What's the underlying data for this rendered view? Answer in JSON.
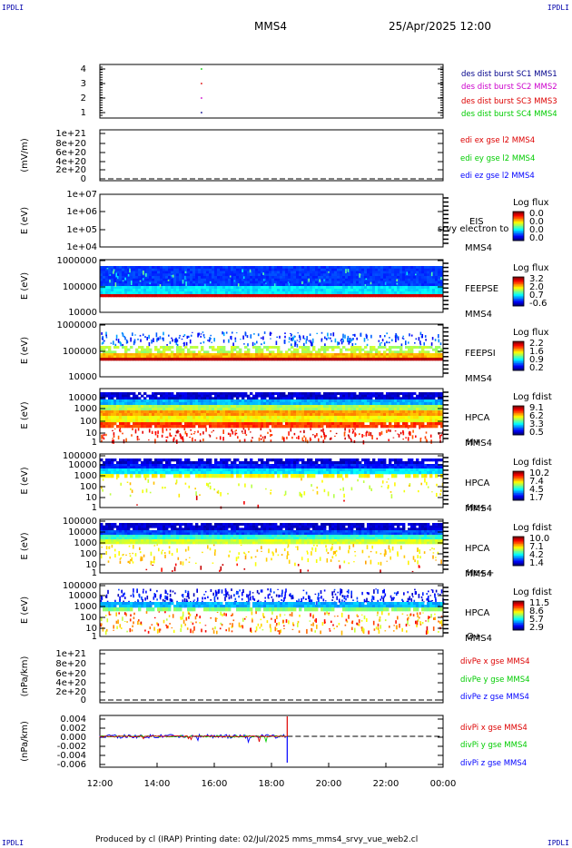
{
  "corners": {
    "tl": "IPDLI",
    "tr": "IPDLI",
    "bl": "IPDLI",
    "br": "IPDLI"
  },
  "header": {
    "spacecraft": "MMS4",
    "datetime": "25/Apr/2025 12:00"
  },
  "footer": {
    "text": "Produced by cl (IRAP)   Printing date: 02/Jul/2025   mms_mms4_srvy_vue_web2.cl"
  },
  "colors": {
    "dark_blue": "#00008b",
    "magenta": "#cc00cc",
    "red": "#dd0000",
    "green": "#00cc00",
    "blue": "#0000ff"
  },
  "chart_data": {
    "type": "heatmap",
    "x": {
      "ticks": [
        "12:00",
        "14:00",
        "16:00",
        "18:00",
        "20:00",
        "22:00",
        "00:00"
      ],
      "range_hours": [
        12,
        24
      ]
    },
    "panels": [
      {
        "id": "burst",
        "type": "scatter",
        "yticks": [
          "1",
          "2",
          "3",
          "4"
        ],
        "ylim": [
          0.6,
          4.4
        ],
        "legend": [
          {
            "text": "des dist burst SC1 MMS1",
            "color": "#00008b"
          },
          {
            "text": "des dist burst SC2 MMS2",
            "color": "#cc00cc"
          },
          {
            "text": "des dist burst SC3 MMS3",
            "color": "#dd0000"
          },
          {
            "text": "des dist burst SC4 MMS4",
            "color": "#00cc00"
          }
        ],
        "points": [
          {
            "x": 15.55,
            "y": 4,
            "color": "#00cc00"
          },
          {
            "x": 15.55,
            "y": 3,
            "color": "#dd0000"
          },
          {
            "x": 15.55,
            "y": 2,
            "color": "#cc00cc"
          },
          {
            "x": 15.55,
            "y": 1,
            "color": "#00008b"
          }
        ]
      },
      {
        "id": "edi",
        "type": "line",
        "ylabel": "(mV/m)",
        "yticks": [
          "1e+21",
          "8e+20",
          "6e+20",
          "4e+20",
          "2e+20",
          "0"
        ],
        "legend": [
          {
            "text": "edi ex gse l2 MMS4",
            "color": "#dd0000"
          },
          {
            "text": "edi ey gse l2 MMS4",
            "color": "#00cc00"
          },
          {
            "text": "edi ez gse l2 MMS4",
            "color": "#0000ff"
          }
        ]
      },
      {
        "id": "eis",
        "type": "heatmap",
        "ylabel": "E (eV)",
        "yticks": [
          "1e+07",
          "1e+06",
          "1e+05",
          "1e+04"
        ],
        "labels": [
          "EIS",
          "MMS4"
        ],
        "overlay": "srvy electron to",
        "cbar": {
          "title": "Log flux",
          "ticks": [
            "0.0",
            "0.0",
            "0.0",
            "0.0"
          ]
        }
      },
      {
        "id": "feepse",
        "type": "heatmap",
        "ylabel": "E (eV)",
        "yticks": [
          "1000000",
          "100000",
          "10000"
        ],
        "labels": [
          "FEEPSE",
          "MMS4"
        ],
        "cbar": {
          "title": "Log flux",
          "ticks": [
            "3.2",
            "2.0",
            "0.7",
            "-0.6"
          ]
        }
      },
      {
        "id": "feepsi",
        "type": "heatmap",
        "ylabel": "E (eV)",
        "yticks": [
          "1000000",
          "100000",
          "10000"
        ],
        "labels": [
          "FEEPSI",
          "MMS4"
        ],
        "cbar": {
          "title": "Log flux",
          "ticks": [
            "2.2",
            "1.6",
            "0.9",
            "0.2"
          ]
        }
      },
      {
        "id": "hpca_h",
        "type": "heatmap",
        "ylabel": "E (eV)",
        "yticks": [
          "10000",
          "1000",
          "100",
          "10",
          "1"
        ],
        "labels": [
          "HPCA",
          "MMS4",
          "H+"
        ],
        "cbar": {
          "title": "Log fdist",
          "ticks": [
            "9.1",
            "6.2",
            "3.3",
            "0.5"
          ]
        }
      },
      {
        "id": "hpca_he",
        "type": "heatmap",
        "ylabel": "E (eV)",
        "yticks": [
          "100000",
          "10000",
          "1000",
          "100",
          "10",
          "1"
        ],
        "labels": [
          "HPCA",
          "MMS4",
          "He+"
        ],
        "cbar": {
          "title": "Log fdist",
          "ticks": [
            "10.2",
            "7.4",
            "4.5",
            "1.7"
          ]
        }
      },
      {
        "id": "hpca_he2",
        "type": "heatmap",
        "ylabel": "E (eV)",
        "yticks": [
          "100000",
          "10000",
          "1000",
          "100",
          "10",
          "1"
        ],
        "labels": [
          "HPCA",
          "MMS4",
          "He++"
        ],
        "cbar": {
          "title": "Log fdist",
          "ticks": [
            "10.0",
            "7.1",
            "4.2",
            "1.4"
          ]
        }
      },
      {
        "id": "hpca_o",
        "type": "heatmap",
        "ylabel": "E (eV)",
        "yticks": [
          "100000",
          "10000",
          "1000",
          "100",
          "10",
          "1"
        ],
        "labels": [
          "HPCA",
          "MMS4",
          "O+"
        ],
        "cbar": {
          "title": "Log fdist",
          "ticks": [
            "11.5",
            "8.6",
            "5.7",
            "2.9"
          ]
        }
      },
      {
        "id": "divpe",
        "type": "line",
        "ylabel": "(nPa/km)",
        "yticks": [
          "1e+21",
          "8e+20",
          "6e+20",
          "4e+20",
          "2e+20",
          "0"
        ],
        "legend": [
          {
            "text": "divPe x gse MMS4",
            "color": "#dd0000"
          },
          {
            "text": "divPe y gse MMS4",
            "color": "#00cc00"
          },
          {
            "text": "divPe z gse MMS4",
            "color": "#0000ff"
          }
        ]
      },
      {
        "id": "divpi",
        "type": "line",
        "ylabel": "(nPa/km)",
        "yticks": [
          "0.004",
          "0.002",
          "0.000",
          "-0.002",
          "-0.004",
          "-0.006"
        ],
        "ylim": [
          -0.0068,
          0.0046
        ],
        "legend": [
          {
            "text": "divPi x gse MMS4",
            "color": "#dd0000"
          },
          {
            "text": "divPi y gse MMS4",
            "color": "#00cc00"
          },
          {
            "text": "divPi z gse MMS4",
            "color": "#0000ff"
          }
        ],
        "data_end_hours": 18.55
      }
    ]
  }
}
